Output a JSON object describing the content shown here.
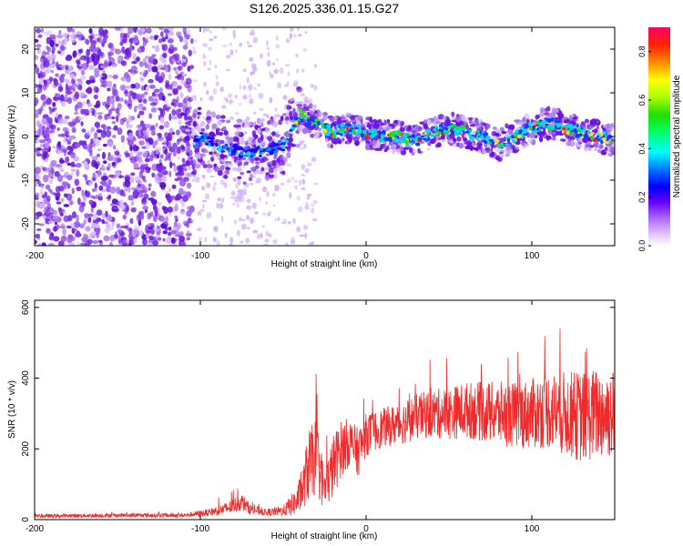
{
  "title": "S126.2025.336.01.15.G27",
  "chart_data": [
    {
      "type": "heatmap",
      "xlabel": "Height of straight line (km)",
      "ylabel": "Frequency (Hz)",
      "xlim": [
        -200,
        150
      ],
      "ylim": [
        -25,
        25
      ],
      "xticks": [
        -200,
        -100,
        0,
        100
      ],
      "yticks": [
        -20,
        -10,
        0,
        10,
        20
      ],
      "ridge": {
        "x": [
          -105,
          -100,
          -90,
          -80,
          -70,
          -60,
          -50,
          -45,
          -40,
          -35,
          -30,
          -20,
          -10,
          0,
          10,
          20,
          30,
          40,
          50,
          60,
          70,
          80,
          90,
          100,
          110,
          120,
          130,
          140,
          150
        ],
        "y": [
          -2,
          0,
          -2,
          -3,
          -4,
          -3,
          -2,
          2,
          5,
          4,
          3,
          1,
          2,
          1,
          0,
          0,
          -1,
          1,
          2,
          1,
          0,
          -2,
          0,
          2,
          3,
          2,
          1,
          0,
          -1
        ]
      },
      "colorbar": {
        "label": "Normalized spectral amplitude",
        "range": [
          0,
          0.9
        ],
        "ticks": [
          0.0,
          0.2,
          0.4,
          0.6,
          0.8
        ],
        "tick_labels": [
          "0.0",
          "0.2",
          "0.4",
          "0.6",
          "0.8"
        ]
      }
    },
    {
      "type": "line",
      "xlabel": "Height of straight line (km)",
      "ylabel": "SNR (10 * v/v)",
      "xlim": [
        -200,
        150
      ],
      "ylim": [
        0,
        620
      ],
      "xticks": [
        -200,
        -100,
        0,
        100
      ],
      "yticks": [
        0,
        200,
        400,
        600
      ],
      "color": "#ee2a2a",
      "envelope": {
        "x": [
          -200,
          -150,
          -110,
          -95,
          -85,
          -75,
          -70,
          -60,
          -50,
          -42,
          -38,
          -35,
          -30,
          -25,
          -20,
          -15,
          -10,
          -5,
          0,
          10,
          20,
          30,
          40,
          50,
          60,
          70,
          80,
          90,
          100,
          110,
          120,
          130,
          140,
          150
        ],
        "mean": [
          10,
          12,
          12,
          20,
          30,
          50,
          30,
          20,
          25,
          50,
          90,
          150,
          180,
          80,
          150,
          200,
          220,
          190,
          240,
          260,
          270,
          290,
          300,
          300,
          310,
          305,
          300,
          295,
          300,
          310,
          300,
          290,
          300,
          300
        ],
        "spread": [
          5,
          6,
          6,
          10,
          18,
          25,
          15,
          10,
          15,
          40,
          60,
          100,
          110,
          60,
          90,
          80,
          70,
          70,
          60,
          55,
          60,
          65,
          70,
          75,
          80,
          85,
          90,
          95,
          100,
          110,
          120,
          130,
          130,
          130
        ]
      }
    }
  ]
}
